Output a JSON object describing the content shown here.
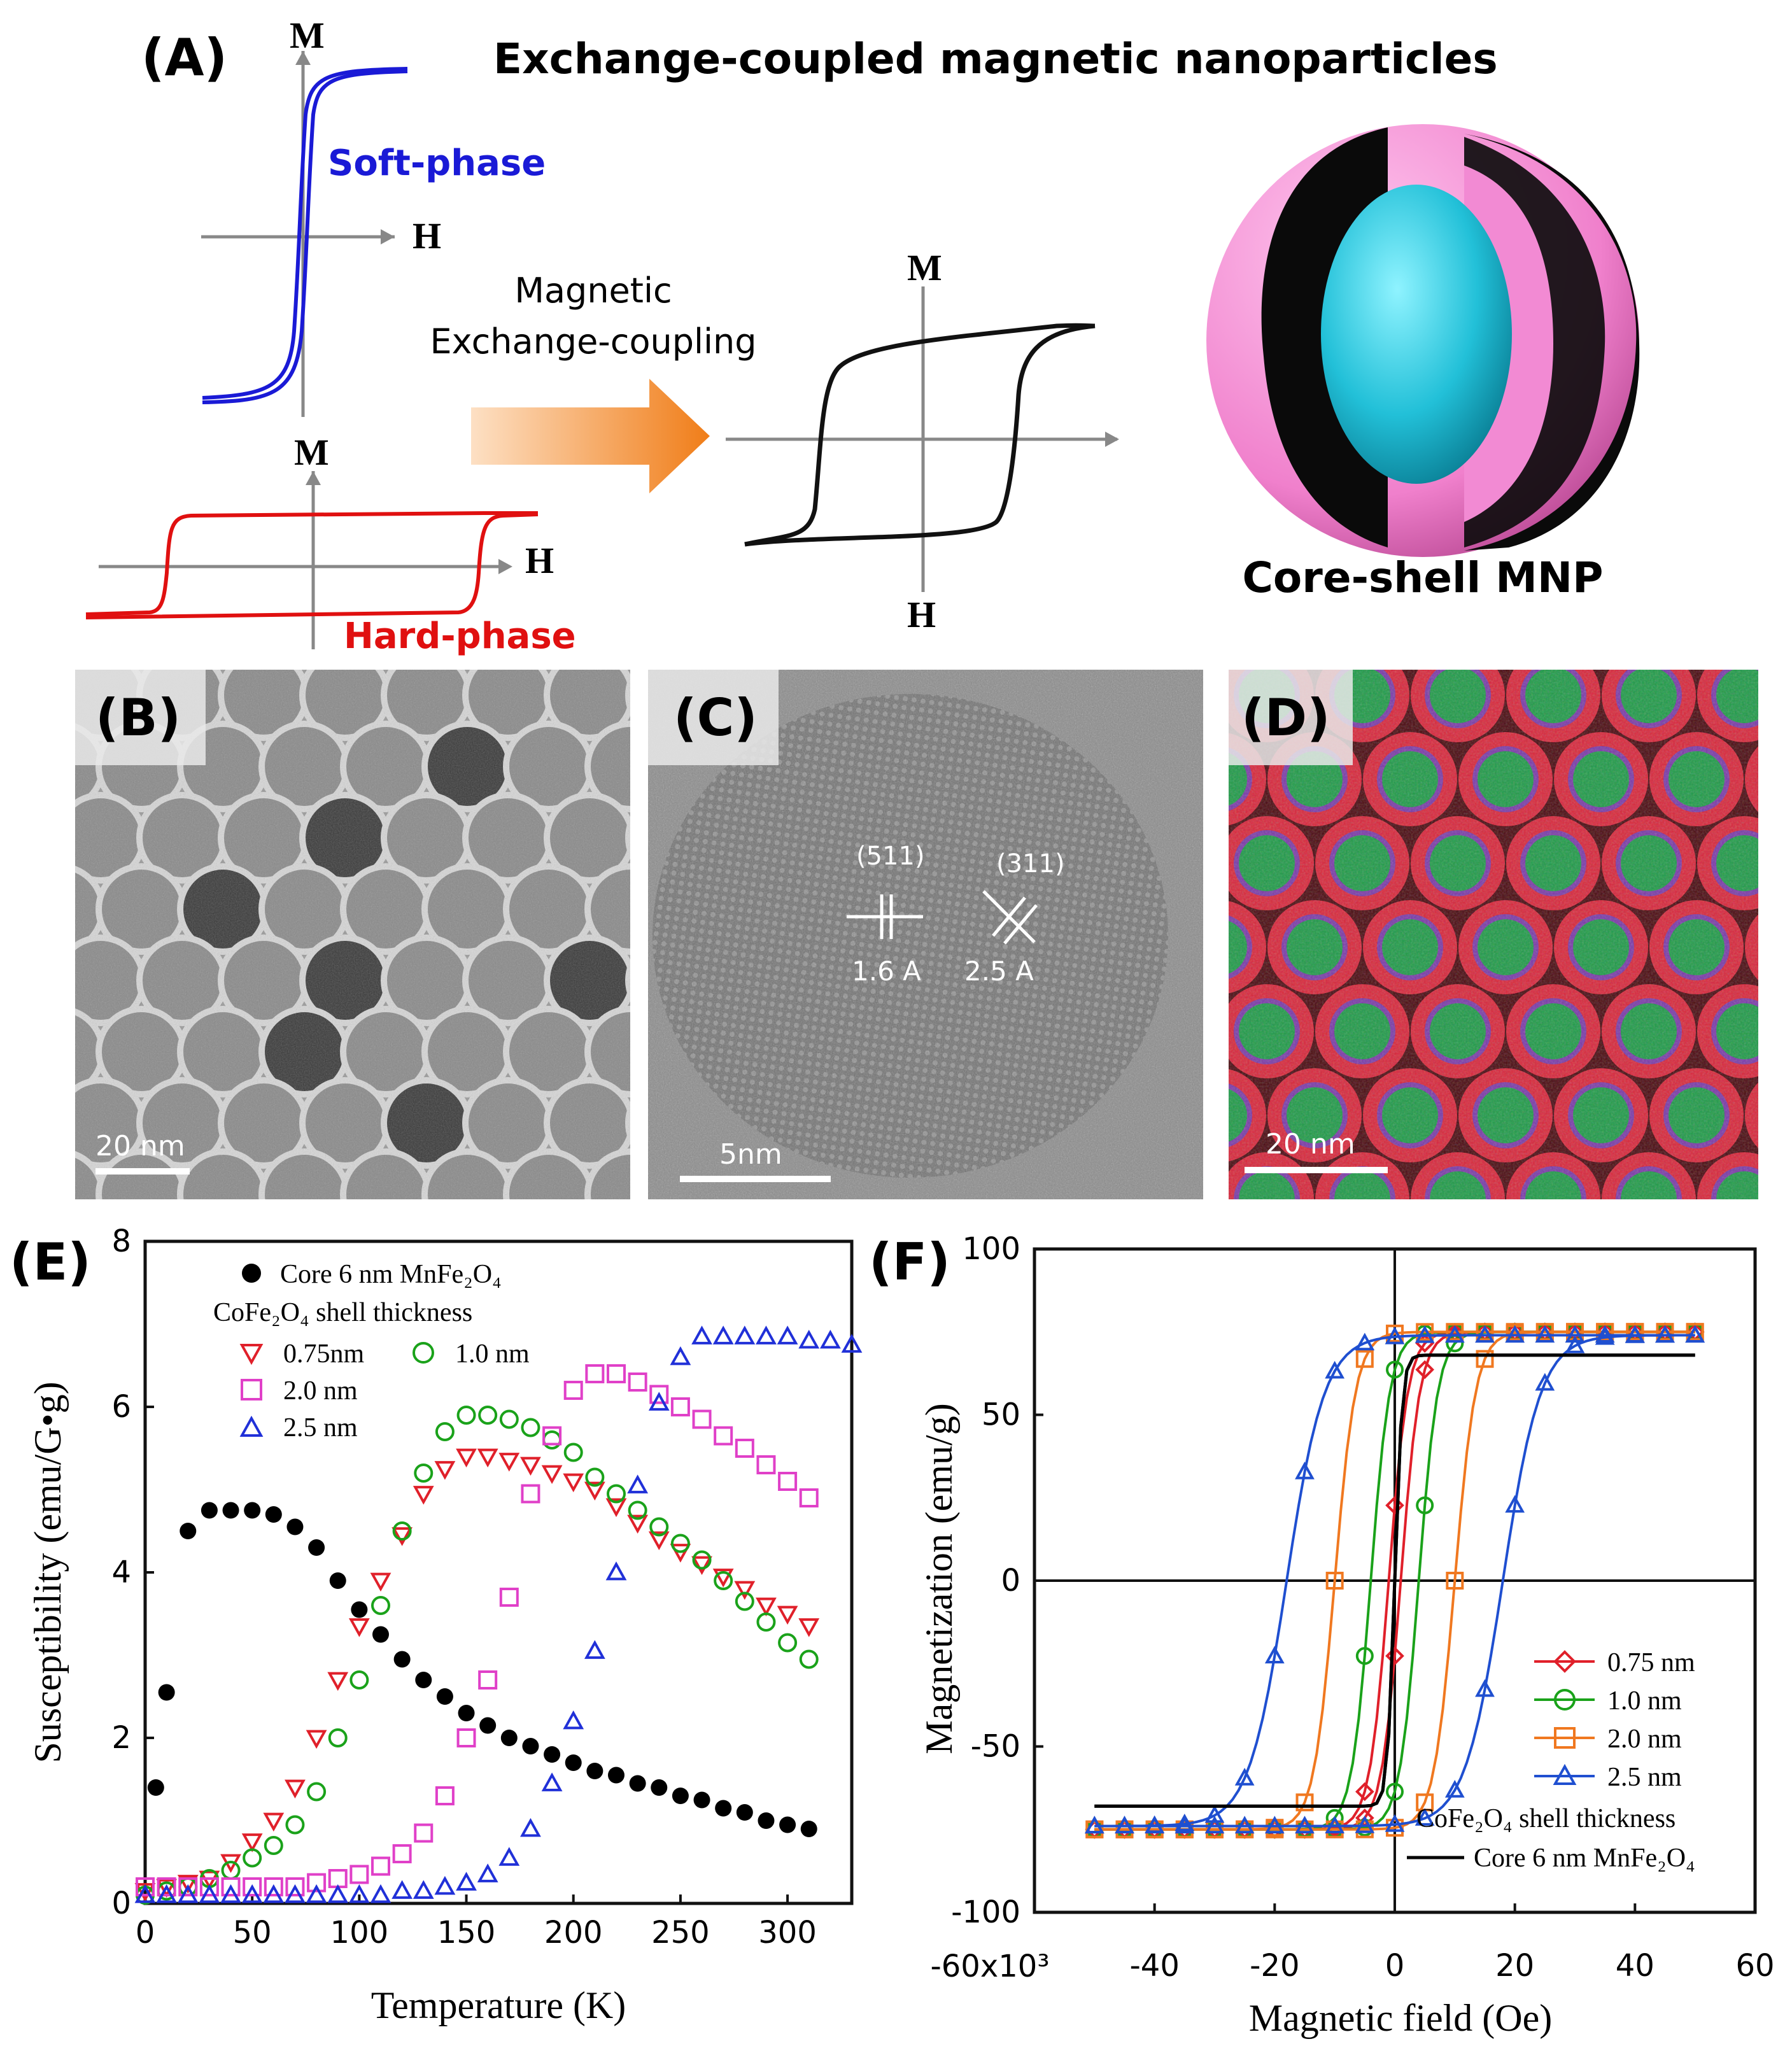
{
  "panel_a": {
    "label": "(A)",
    "title": "Exchange-coupled magnetic nanoparticles",
    "soft": {
      "axis_m": "M",
      "axis_h": "H",
      "caption": "Soft-phase",
      "color": "#1a1ad6"
    },
    "hard": {
      "axis_m": "M",
      "axis_h": "H",
      "caption": "Hard-phase",
      "color": "#e01010"
    },
    "arrow_text_1": "Magnetic",
    "arrow_text_2": "Exchange-coupling",
    "coupled": {
      "axis_m": "M",
      "axis_h": "H"
    },
    "particle_caption": "Core-shell MNP",
    "colors": {
      "shell": "#f08ad0",
      "core": "#29c4dc",
      "arrow": "#f7a04a"
    }
  },
  "panel_b": {
    "label": "(B)",
    "scale": "20 nm"
  },
  "panel_c": {
    "label": "(C)",
    "scale": "5nm",
    "plane_1": "(511)",
    "spacing_1": "1.6 A",
    "plane_2": "(311)",
    "spacing_2": "2.5 A"
  },
  "panel_d": {
    "label": "(D)",
    "scale": "20 nm"
  },
  "panel_e": {
    "label": "(E)"
  },
  "panel_f": {
    "label": "(F)"
  },
  "chart_data": [
    {
      "id": "E",
      "type": "scatter",
      "title": "",
      "xlabel": "Temperature (K)",
      "ylabel": "Susceptibility (emu/G•g)",
      "xlim": [
        0,
        330
      ],
      "ylim": [
        0,
        8
      ],
      "xticks": [
        0,
        50,
        100,
        150,
        200,
        250,
        300
      ],
      "yticks": [
        0,
        2,
        4,
        6,
        8
      ],
      "legend_core": "Core 6 nm MnFe₂O₄",
      "legend_shell_header": "CoFe₂O₄ shell thickness",
      "series": [
        {
          "name": "Core 6 nm MnFe₂O₄",
          "marker": "circle-filled",
          "color": "#000000",
          "x": [
            5,
            10,
            20,
            30,
            40,
            50,
            60,
            70,
            80,
            90,
            100,
            110,
            120,
            130,
            140,
            150,
            160,
            170,
            180,
            190,
            200,
            210,
            220,
            230,
            240,
            250,
            260,
            270,
            280,
            290,
            300,
            310
          ],
          "y": [
            1.4,
            2.55,
            4.5,
            4.75,
            4.75,
            4.75,
            4.7,
            4.55,
            4.3,
            3.9,
            3.55,
            3.25,
            2.95,
            2.7,
            2.5,
            2.3,
            2.15,
            2.0,
            1.9,
            1.8,
            1.7,
            1.6,
            1.55,
            1.45,
            1.4,
            1.3,
            1.25,
            1.15,
            1.1,
            1.0,
            0.95,
            0.9
          ]
        },
        {
          "name": "0.75nm",
          "marker": "triangle-down",
          "color": "#e0202a",
          "x": [
            0,
            10,
            20,
            30,
            40,
            50,
            60,
            70,
            80,
            90,
            100,
            110,
            120,
            130,
            140,
            150,
            160,
            170,
            180,
            190,
            200,
            210,
            220,
            230,
            240,
            250,
            260,
            270,
            280,
            290,
            300,
            310
          ],
          "y": [
            0.15,
            0.2,
            0.25,
            0.3,
            0.5,
            0.75,
            1.0,
            1.4,
            2.0,
            2.7,
            3.35,
            3.9,
            4.45,
            4.95,
            5.25,
            5.4,
            5.4,
            5.35,
            5.3,
            5.2,
            5.1,
            5.0,
            4.8,
            4.6,
            4.4,
            4.25,
            4.1,
            3.95,
            3.8,
            3.6,
            3.5,
            3.35
          ]
        },
        {
          "name": "1.0 nm",
          "marker": "circle-open",
          "color": "#1aa21a",
          "x": [
            0,
            10,
            20,
            30,
            40,
            50,
            60,
            70,
            80,
            90,
            100,
            110,
            120,
            130,
            140,
            150,
            160,
            170,
            180,
            190,
            200,
            210,
            220,
            230,
            240,
            250,
            260,
            270,
            280,
            290,
            300,
            310
          ],
          "y": [
            0.1,
            0.15,
            0.2,
            0.3,
            0.4,
            0.55,
            0.7,
            0.95,
            1.35,
            2.0,
            2.7,
            3.6,
            4.5,
            5.2,
            5.7,
            5.9,
            5.9,
            5.85,
            5.75,
            5.6,
            5.45,
            5.15,
            4.95,
            4.75,
            4.55,
            4.35,
            4.15,
            3.9,
            3.65,
            3.4,
            3.15,
            2.95
          ]
        },
        {
          "name": "2.0 nm",
          "marker": "square-open",
          "color": "#e040c8",
          "x": [
            0,
            10,
            20,
            30,
            40,
            50,
            60,
            70,
            80,
            90,
            100,
            110,
            120,
            130,
            140,
            150,
            160,
            170,
            180,
            190,
            200,
            210,
            220,
            230,
            240,
            250,
            260,
            270,
            280,
            290,
            300,
            310
          ],
          "y": [
            0.2,
            0.2,
            0.2,
            0.2,
            0.2,
            0.2,
            0.2,
            0.2,
            0.25,
            0.3,
            0.35,
            0.45,
            0.6,
            0.85,
            1.3,
            2.0,
            2.7,
            3.7,
            4.95,
            5.65,
            6.2,
            6.4,
            6.4,
            6.3,
            6.15,
            6.0,
            5.85,
            5.65,
            5.5,
            5.3,
            5.1,
            4.9
          ]
        },
        {
          "name": "2.5 nm",
          "marker": "triangle-up",
          "color": "#2030d8",
          "x": [
            0,
            10,
            20,
            30,
            40,
            50,
            60,
            70,
            80,
            90,
            100,
            110,
            120,
            130,
            140,
            150,
            160,
            170,
            180,
            190,
            200,
            210,
            220,
            230,
            240,
            250,
            260,
            270,
            280,
            290,
            300,
            310,
            320,
            330
          ],
          "y": [
            0.1,
            0.1,
            0.1,
            0.1,
            0.1,
            0.1,
            0.1,
            0.1,
            0.1,
            0.1,
            0.1,
            0.1,
            0.15,
            0.15,
            0.2,
            0.25,
            0.35,
            0.55,
            0.9,
            1.45,
            2.2,
            3.05,
            4.0,
            5.05,
            6.05,
            6.6,
            6.85,
            6.85,
            6.85,
            6.85,
            6.85,
            6.8,
            6.8,
            6.75
          ]
        }
      ]
    },
    {
      "id": "F",
      "type": "line",
      "title": "",
      "xlabel": "Magnetic field (Oe)",
      "ylabel": "Magnetization (emu/g)",
      "xlim": [
        -60,
        60
      ],
      "ylim": [
        -100,
        100
      ],
      "x_scale_label": "-60x10³",
      "xticks": [
        -40,
        -20,
        0,
        20,
        40,
        60
      ],
      "yticks": [
        -100,
        -50,
        0,
        50,
        100
      ],
      "legend_shell_header": "CoFe₂O₄ shell thickness",
      "legend_core": "Core 6 nm MnFe₂O₄",
      "series": [
        {
          "name": "0.75 nm",
          "marker": "diamond-open",
          "color": "#e0202a",
          "coercive_field": 1.0,
          "Ms": 75
        },
        {
          "name": "1.0 nm",
          "marker": "circle-open",
          "color": "#1aa21a",
          "coercive_field": 4.0,
          "Ms": 75
        },
        {
          "name": "2.0 nm",
          "marker": "square-open",
          "color": "#f07820",
          "coercive_field": 10.0,
          "Ms": 75
        },
        {
          "name": "2.5 nm",
          "marker": "triangle-up",
          "color": "#1f4fd0",
          "coercive_field": 18.0,
          "Ms": 74
        },
        {
          "name": "Core 6 nm MnFe₂O₄",
          "marker": "line",
          "color": "#000000",
          "coercive_field": 0,
          "Ms": 68
        }
      ]
    }
  ]
}
